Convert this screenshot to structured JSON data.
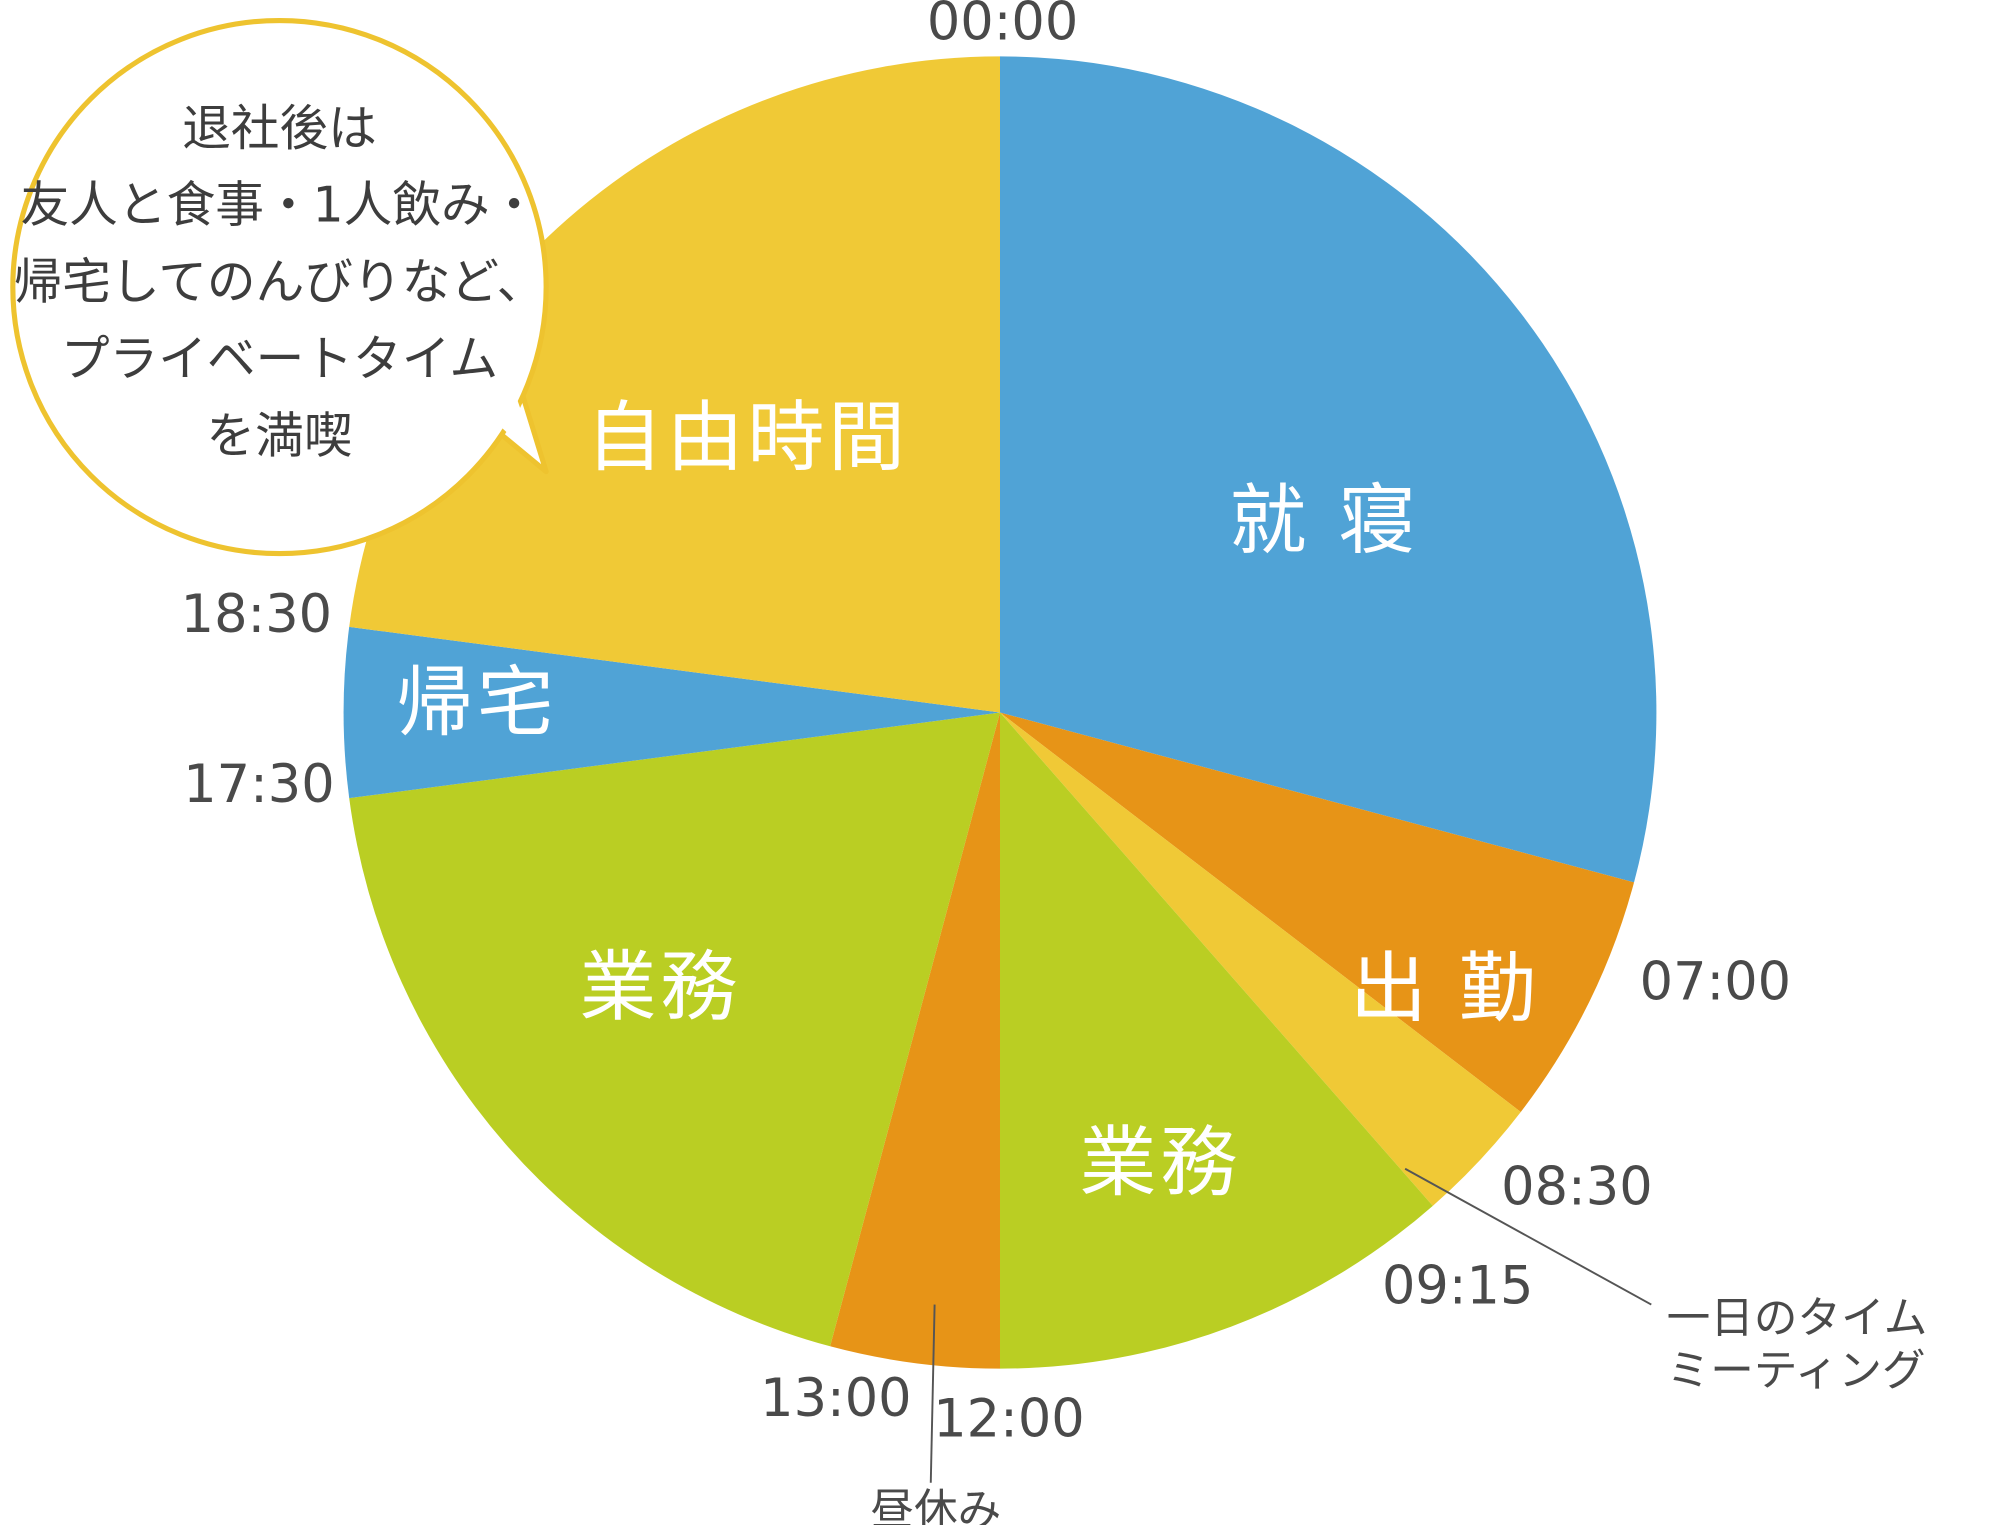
{
  "colors": {
    "blue": "#50A3D6",
    "orange": "#E79417",
    "yellow": "#F0C936",
    "green": "#BACE23",
    "text_dark": "#4A4A4A",
    "bubble_border": "#EEC32F"
  },
  "chart_data": {
    "type": "pie",
    "unit": "time of day (24h clock)",
    "start_angle_time": "00:00",
    "slices": [
      {
        "label": "就寝",
        "start": "00:00",
        "end": "07:00",
        "hours": 7.0,
        "color": "#50A3D6"
      },
      {
        "label": "出勤",
        "start": "07:00",
        "end": "08:30",
        "hours": 1.5,
        "color": "#E79417"
      },
      {
        "label": "一日のタイムミーティング",
        "start": "08:30",
        "end": "09:15",
        "hours": 0.75,
        "color": "#F0C936"
      },
      {
        "label": "業務",
        "start": "09:15",
        "end": "12:00",
        "hours": 2.75,
        "color": "#BACE23"
      },
      {
        "label": "昼休み",
        "start": "12:00",
        "end": "13:00",
        "hours": 1.0,
        "color": "#E79417"
      },
      {
        "label": "業務",
        "start": "13:00",
        "end": "17:30",
        "hours": 4.5,
        "color": "#BACE23"
      },
      {
        "label": "帰宅",
        "start": "17:30",
        "end": "18:30",
        "hours": 1.0,
        "color": "#50A3D6"
      },
      {
        "label": "自由時間",
        "start": "18:30",
        "end": "24:00",
        "hours": 5.5,
        "color": "#F0C936"
      }
    ],
    "boundary_labels": [
      "00:00",
      "07:00",
      "08:30",
      "09:15",
      "12:00",
      "13:00",
      "17:30",
      "18:30"
    ],
    "slice_text": {
      "sleep": "就 寝",
      "commute": "出 勤",
      "work_morning": "業務",
      "work_afternoon": "業務",
      "return_home": "帰宅",
      "free_time": "自由時間"
    },
    "annotations": {
      "meeting_line1": "一日のタイム",
      "meeting_line2": "ミーティング",
      "lunch": "昼休み"
    },
    "callout_lines": [
      "退社後は",
      "友人と食事・1人飲み・",
      "帰宅してのんびりなど、",
      "プライベートタイム",
      "を満喫"
    ]
  }
}
